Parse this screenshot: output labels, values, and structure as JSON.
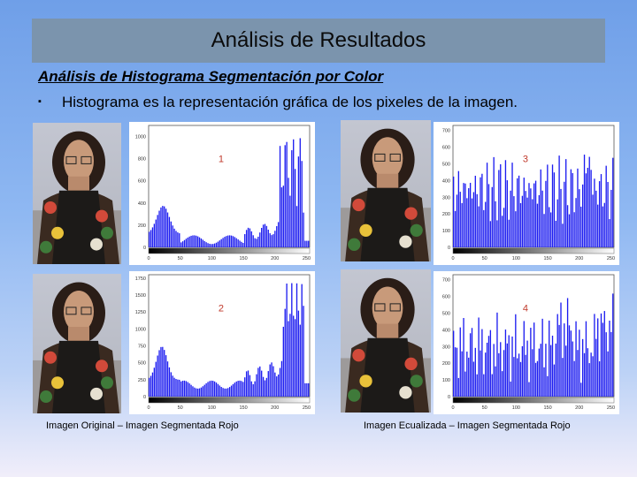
{
  "header": {
    "title": "Análisis de Resultados"
  },
  "section": {
    "subtitle": "Análisis de Histograma Segmentación por Color",
    "bullet_marker": "▪",
    "bullet_text": "Histograma es la representación gráfica de los pixeles de la imagen."
  },
  "captions": {
    "left": "Imagen Original – Imagen Segmentada Rojo",
    "right": "Imagen Ecualizada – Imagen Segmentada Rojo"
  },
  "bar_color": "#1b1bf0",
  "number_color": "#c0392b",
  "chart_data": [
    {
      "type": "bar",
      "annotation": "1",
      "x_ticks": [
        "0",
        "50",
        "100",
        "150",
        "200",
        "250"
      ],
      "y_ticks": [
        "0",
        "200",
        "400",
        "600",
        "800",
        "1000"
      ],
      "ylim": [
        0,
        1100
      ],
      "xlim": [
        0,
        255
      ]
    },
    {
      "type": "bar",
      "annotation": "3",
      "x_ticks": [
        "0",
        "50",
        "100",
        "150",
        "200",
        "250"
      ],
      "y_ticks": [
        "0",
        "100",
        "200",
        "300",
        "400",
        "500",
        "600",
        "700"
      ],
      "ylim": [
        0,
        730
      ],
      "xlim": [
        0,
        255
      ]
    },
    {
      "type": "bar",
      "annotation": "2",
      "x_ticks": [
        "0",
        "50",
        "100",
        "150",
        "200",
        "250"
      ],
      "y_ticks": [
        "0",
        "250",
        "500",
        "750",
        "1000",
        "1250",
        "1500",
        "1750"
      ],
      "ylim": [
        0,
        1800
      ],
      "xlim": [
        0,
        255
      ]
    },
    {
      "type": "bar",
      "annotation": "4",
      "x_ticks": [
        "0",
        "50",
        "100",
        "150",
        "200",
        "250"
      ],
      "y_ticks": [
        "0",
        "100",
        "200",
        "300",
        "400",
        "500",
        "600",
        "700"
      ],
      "ylim": [
        0,
        730
      ],
      "xlim": [
        0,
        255
      ]
    }
  ]
}
